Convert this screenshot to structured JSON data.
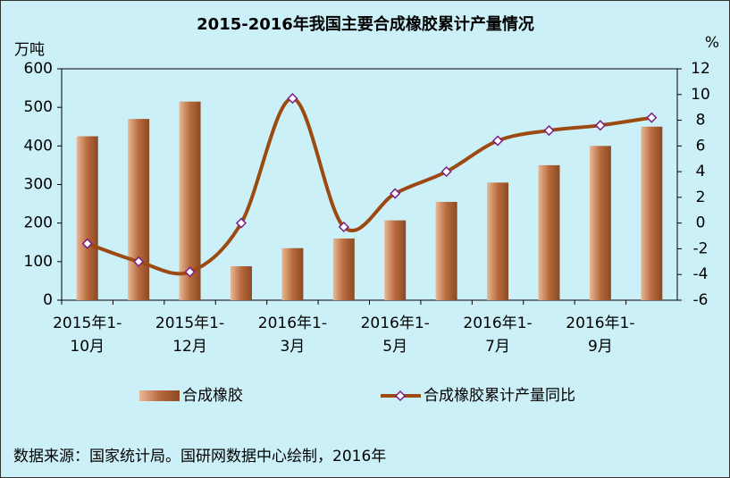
{
  "chart_data": {
    "type": "bar",
    "title": "2015-2016年我国主要合成橡胶累计产量情况",
    "y_label": "万吨",
    "y2_label": "%",
    "categories": [
      "2015年1-10月",
      null,
      "2015年1-12月",
      null,
      "2016年1-3月",
      null,
      "2016年1-5月",
      null,
      "2016年1-7月",
      null,
      "2016年1-9月",
      null
    ],
    "series": [
      {
        "name": "合成橡胶",
        "type": "bar",
        "color": "#b86a3c",
        "values": [
          425,
          470,
          515,
          88,
          135,
          160,
          207,
          255,
          305,
          350,
          400,
          450
        ]
      },
      {
        "name": "合成橡胶累计产量同比",
        "type": "line",
        "axis": "y2",
        "color": "#9c4a12",
        "values": [
          -1.6,
          -3.0,
          -3.8,
          0,
          9.7,
          -0.3,
          2.3,
          4.0,
          6.4,
          7.2,
          7.6,
          8.2
        ]
      }
    ],
    "ylim": [
      0,
      600
    ],
    "yticks": [
      0,
      100,
      200,
      300,
      400,
      500,
      600
    ],
    "y2lim": [
      -6,
      12
    ],
    "y2ticks": [
      -6,
      -4,
      -2,
      0,
      2,
      4,
      6,
      8,
      10,
      12
    ],
    "source": "数据来源：国家统计局。国研网数据中心绘制，2016年"
  }
}
